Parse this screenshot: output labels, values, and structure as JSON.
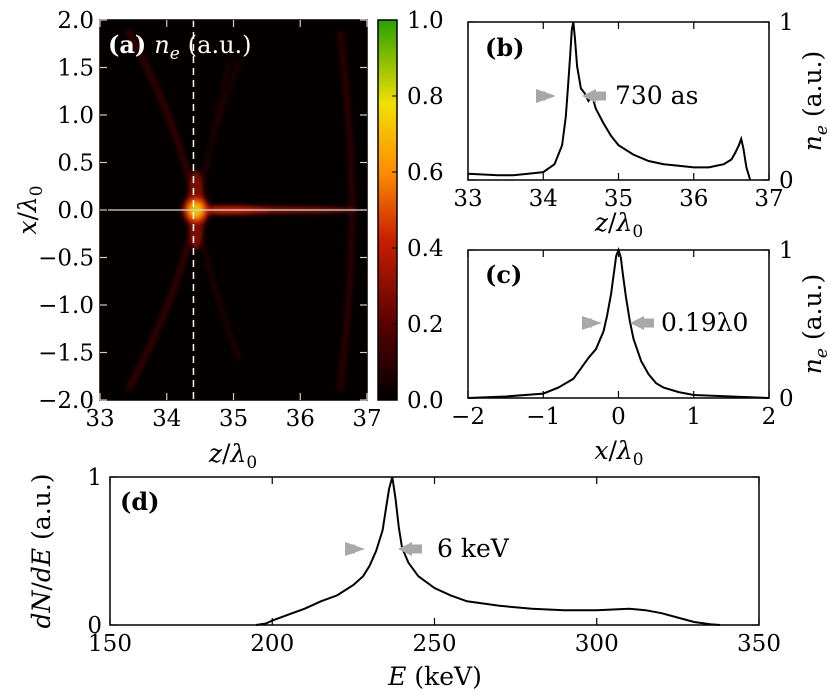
{
  "chart_data": [
    {
      "panel": "(a)",
      "type": "heatmap",
      "label_prefix": "(a)",
      "label_var": "n",
      "label_sub": "e",
      "label_unit": "(a.u.)",
      "xlabel": "z/λ0",
      "ylabel": "x/λ0",
      "xlim": [
        33,
        37
      ],
      "ylim": [
        -2.0,
        2.0
      ],
      "xticks": [
        "33",
        "34",
        "35",
        "36",
        "37"
      ],
      "yticks": [
        "2.0",
        "1.5",
        "1.0",
        "0.5",
        "0.0",
        "−0.5",
        "−1.0",
        "−1.5",
        "−2.0"
      ],
      "colorbar_ticks": [
        "1.0",
        "0.8",
        "0.6",
        "0.4",
        "0.2",
        "0.0"
      ],
      "colorbar_range": [
        0.0,
        1.0
      ],
      "colormap": [
        "#000000",
        "#5a0000",
        "#c81e00",
        "#ff8c00",
        "#f0e000",
        "#2aa000"
      ],
      "peak": {
        "z": 34.4,
        "x": 0.0,
        "value": 1.0
      },
      "dashed_line_z": 34.4,
      "solid_line_x": 0.0
    },
    {
      "panel": "(b)",
      "type": "line",
      "label": "(b)",
      "xlabel": "z/λ0",
      "ylabel": "n_e (a.u.)",
      "xlim": [
        33,
        37
      ],
      "ylim": [
        0,
        1
      ],
      "xticks": [
        "33",
        "34",
        "35",
        "36",
        "37"
      ],
      "yticks": [
        "0",
        "1"
      ],
      "annotation": "730 as",
      "series": [
        {
          "x": [
            33.0,
            33.2,
            33.4,
            33.6,
            33.8,
            34.0,
            34.15,
            34.25,
            34.3,
            34.33,
            34.36,
            34.38,
            34.4,
            34.42,
            34.45,
            34.5,
            34.55,
            34.6,
            34.65,
            34.7,
            34.8,
            34.9,
            35.0,
            35.2,
            35.4,
            35.6,
            35.8,
            36.0,
            36.2,
            36.4,
            36.5,
            36.55,
            36.6,
            36.63,
            36.66,
            36.7,
            36.75
          ],
          "y": [
            0.04,
            0.035,
            0.03,
            0.03,
            0.04,
            0.05,
            0.1,
            0.22,
            0.4,
            0.6,
            0.8,
            0.95,
            1.0,
            0.9,
            0.72,
            0.58,
            0.55,
            0.5,
            0.53,
            0.45,
            0.36,
            0.28,
            0.22,
            0.16,
            0.12,
            0.1,
            0.09,
            0.08,
            0.08,
            0.1,
            0.13,
            0.17,
            0.22,
            0.26,
            0.2,
            0.08,
            0.0
          ]
        }
      ]
    },
    {
      "panel": "(c)",
      "type": "line",
      "label": "(c)",
      "xlabel": "x/λ0",
      "ylabel": "n_e (a.u.)",
      "xlim": [
        -2,
        2
      ],
      "ylim": [
        0,
        1
      ],
      "xticks": [
        "−2",
        "−1",
        "0",
        "1",
        "2"
      ],
      "yticks": [
        "0",
        "1"
      ],
      "annotation": "0.19λ0",
      "series": [
        {
          "x": [
            -2.0,
            -1.5,
            -1.0,
            -0.8,
            -0.6,
            -0.5,
            -0.4,
            -0.3,
            -0.2,
            -0.15,
            -0.1,
            -0.06,
            -0.03,
            0.0,
            0.03,
            0.06,
            0.1,
            0.15,
            0.2,
            0.3,
            0.4,
            0.5,
            0.6,
            0.8,
            1.0,
            1.5,
            2.0
          ],
          "y": [
            0.0,
            0.01,
            0.03,
            0.07,
            0.13,
            0.2,
            0.27,
            0.33,
            0.45,
            0.56,
            0.7,
            0.85,
            0.96,
            1.0,
            0.95,
            0.83,
            0.68,
            0.52,
            0.4,
            0.25,
            0.16,
            0.1,
            0.07,
            0.04,
            0.02,
            0.01,
            0.0
          ]
        }
      ]
    },
    {
      "panel": "(d)",
      "type": "line",
      "label": "(d)",
      "xlabel": "E (keV)",
      "ylabel": "dN/dE (a.u.)",
      "xlim": [
        150,
        350
      ],
      "ylim": [
        0,
        1
      ],
      "xticks": [
        "150",
        "200",
        "250",
        "300",
        "350"
      ],
      "yticks": [
        "0",
        "1"
      ],
      "annotation": "6 keV",
      "series": [
        {
          "x": [
            195,
            198,
            200,
            205,
            210,
            215,
            220,
            225,
            228,
            230,
            232,
            234,
            235,
            236,
            237,
            238,
            239,
            240,
            242,
            245,
            250,
            255,
            260,
            270,
            280,
            290,
            300,
            310,
            315,
            320,
            325,
            330,
            335,
            338
          ],
          "y": [
            0.0,
            0.01,
            0.03,
            0.07,
            0.11,
            0.16,
            0.2,
            0.27,
            0.33,
            0.4,
            0.5,
            0.64,
            0.78,
            0.92,
            1.0,
            0.85,
            0.66,
            0.52,
            0.42,
            0.33,
            0.25,
            0.2,
            0.16,
            0.13,
            0.11,
            0.1,
            0.1,
            0.11,
            0.1,
            0.08,
            0.05,
            0.02,
            0.005,
            0.0
          ]
        }
      ]
    }
  ]
}
